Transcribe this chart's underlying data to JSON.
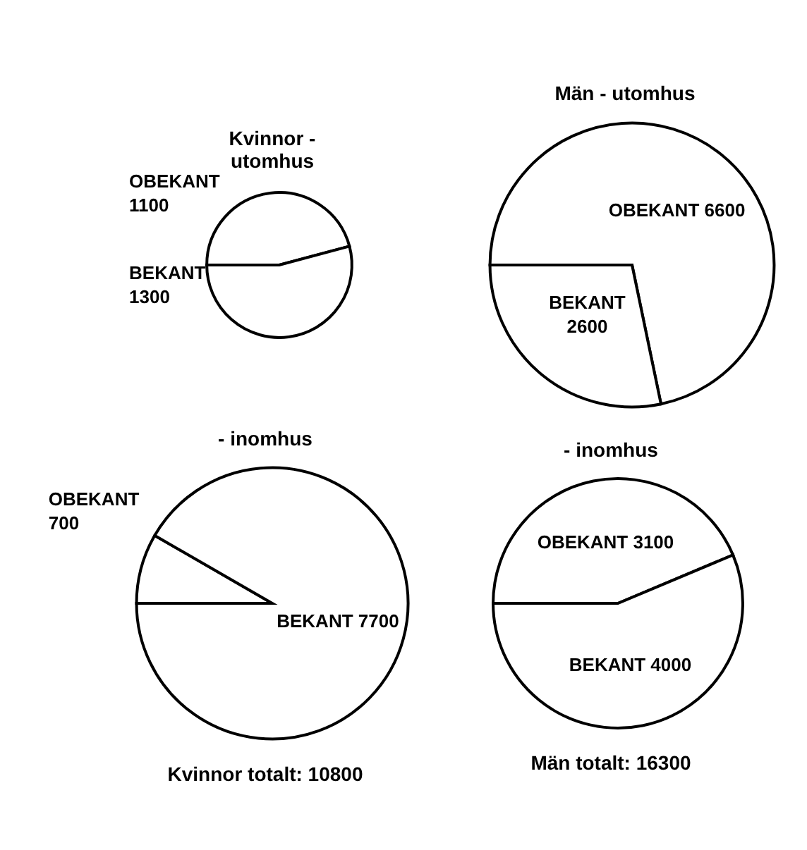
{
  "chart_data": [
    {
      "type": "pie",
      "title": "Kvinnor - utomhus",
      "categories": [
        "OBEKANT",
        "BEKANT"
      ],
      "values": [
        1100,
        1300
      ],
      "colors": [
        "#ffffff",
        "#ffffff"
      ],
      "data_labels": true
    },
    {
      "type": "pie",
      "title": "Män - utomhus",
      "categories": [
        "OBEKANT",
        "BEKANT"
      ],
      "values": [
        6600,
        2600
      ],
      "colors": [
        "#ffffff",
        "#ffffff"
      ],
      "data_labels": true
    },
    {
      "type": "pie",
      "title": "- inomhus",
      "categories": [
        "OBEKANT",
        "BEKANT"
      ],
      "values": [
        700,
        7700
      ],
      "colors": [
        "#ffffff",
        "#ffffff"
      ],
      "data_labels": true,
      "annotations": [
        "Kvinnor totalt: 10800"
      ]
    },
    {
      "type": "pie",
      "title": "- inomhus",
      "categories": [
        "OBEKANT",
        "BEKANT"
      ],
      "values": [
        3100,
        4000
      ],
      "colors": [
        "#ffffff",
        "#ffffff"
      ],
      "data_labels": true,
      "annotations": [
        "Män totalt: 16300"
      ]
    }
  ]
}
